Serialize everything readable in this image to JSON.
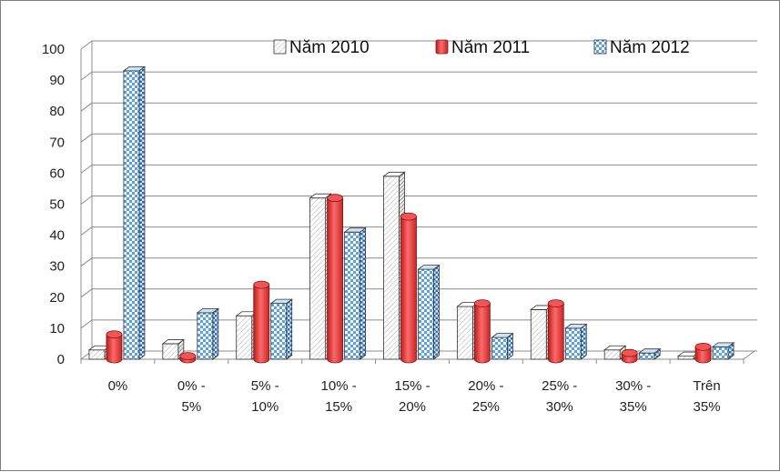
{
  "chart_data": {
    "type": "bar",
    "categories": [
      [
        "0%"
      ],
      [
        "0% -",
        "5%"
      ],
      [
        "5% -",
        "10%"
      ],
      [
        "10% -",
        "15%"
      ],
      [
        "15% -",
        "20%"
      ],
      [
        "20% -",
        "25%"
      ],
      [
        "25% -",
        "30%"
      ],
      [
        "30% -",
        "35%"
      ],
      [
        "Trên",
        "35%"
      ]
    ],
    "series": [
      {
        "name": "Năm 2010",
        "color": "#ffffff",
        "pattern": "diagonal-hatch",
        "values": [
          3,
          5,
          14,
          52,
          59,
          17,
          16,
          3,
          1
        ]
      },
      {
        "name": "Năm 2011",
        "color": "#e83a3a",
        "pattern": "solid-cylinder",
        "values": [
          8,
          1,
          24,
          52,
          46,
          18,
          18,
          2,
          4
        ]
      },
      {
        "name": "Năm 2012",
        "color": "#5aa0e6",
        "pattern": "checker",
        "values": [
          93,
          15,
          18,
          41,
          29,
          7,
          10,
          2,
          4
        ]
      }
    ],
    "ylim": [
      0,
      100
    ],
    "yticks": [
      0,
      10,
      20,
      30,
      40,
      50,
      60,
      70,
      80,
      90,
      100
    ],
    "grid": true,
    "legend_position": "top-right",
    "title": "",
    "xlabel": "",
    "ylabel": ""
  }
}
